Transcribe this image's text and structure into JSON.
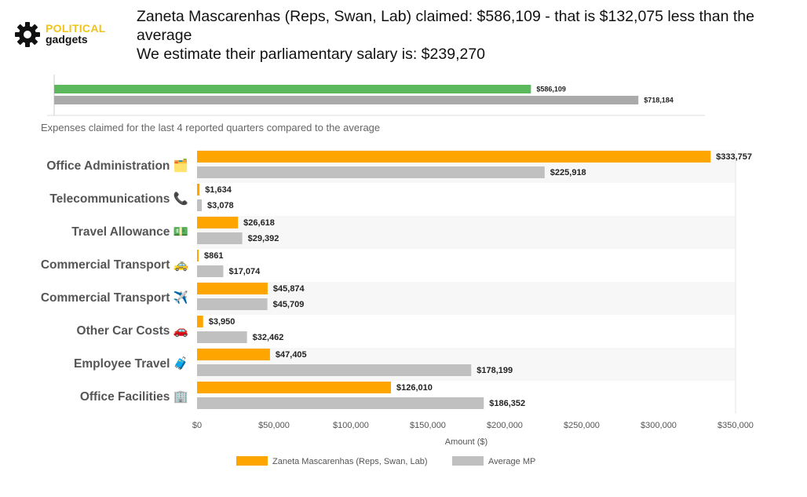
{
  "brand": {
    "line1": "POLITICAL",
    "line2": "gadgets",
    "icon": "gear-icon",
    "colors": {
      "accent": "#f0c419",
      "dark": "#111111"
    }
  },
  "headline": {
    "line1": "Zaneta Mascarenhas (Reps, Swan, Lab) claimed: $586,109 - that is $132,075 less than the",
    "line2": "average",
    "line3": "We estimate their parliamentary salary is: $239,270"
  },
  "chart_data": [
    {
      "type": "bar",
      "orientation": "horizontal",
      "categories": [
        ""
      ],
      "series": [
        {
          "name": "",
          "values": [
            586109
          ],
          "labels": [
            "$586,109"
          ],
          "color": "#5cb85c"
        },
        {
          "name": "",
          "values": [
            718184
          ],
          "labels": [
            "$718,184"
          ],
          "color": "#aaaaaa"
        }
      ],
      "xlim": [
        0,
        800000
      ]
    },
    {
      "type": "bar",
      "orientation": "horizontal",
      "title": "Expenses claimed for the last 4 reported quarters compared to the average",
      "xlabel": "Amount ($)",
      "ylabel": "",
      "xlim": [
        0,
        350000
      ],
      "ticks": [
        "$0",
        "$50,000",
        "$100,000",
        "$150,000",
        "$200,000",
        "$250,000",
        "$300,000",
        "$350,000"
      ],
      "tick_values": [
        0,
        50000,
        100000,
        150000,
        200000,
        250000,
        300000,
        350000
      ],
      "categories": [
        "Office Administration 🗂️",
        "Telecommunications 📞",
        "Travel Allowance 💵",
        "Commercial Transport 🚕",
        "Commercial Transport ✈️",
        "Other Car Costs 🚗",
        "Employee Travel 🧳",
        "Office Facilities 🏢"
      ],
      "series": [
        {
          "name": "Zaneta Mascarenhas  (Reps, Swan, Lab)",
          "color": "#ffa500",
          "values": [
            333757,
            1634,
            26618,
            861,
            45874,
            3950,
            47405,
            126010
          ],
          "labels": [
            "$333,757",
            "$1,634",
            "$26,618",
            "$861",
            "$45,874",
            "$3,950",
            "$47,405",
            "$126,010"
          ]
        },
        {
          "name": "Average MP",
          "color": "#c0c0c0",
          "values": [
            225918,
            3078,
            29392,
            17074,
            45709,
            32462,
            178199,
            186352
          ],
          "labels": [
            "$225,918",
            "$3,078",
            "$29,392",
            "$17,074",
            "$45,709",
            "$32,462",
            "$178,199",
            "$186,352"
          ]
        }
      ],
      "legend": "bottom",
      "grid": true
    }
  ]
}
